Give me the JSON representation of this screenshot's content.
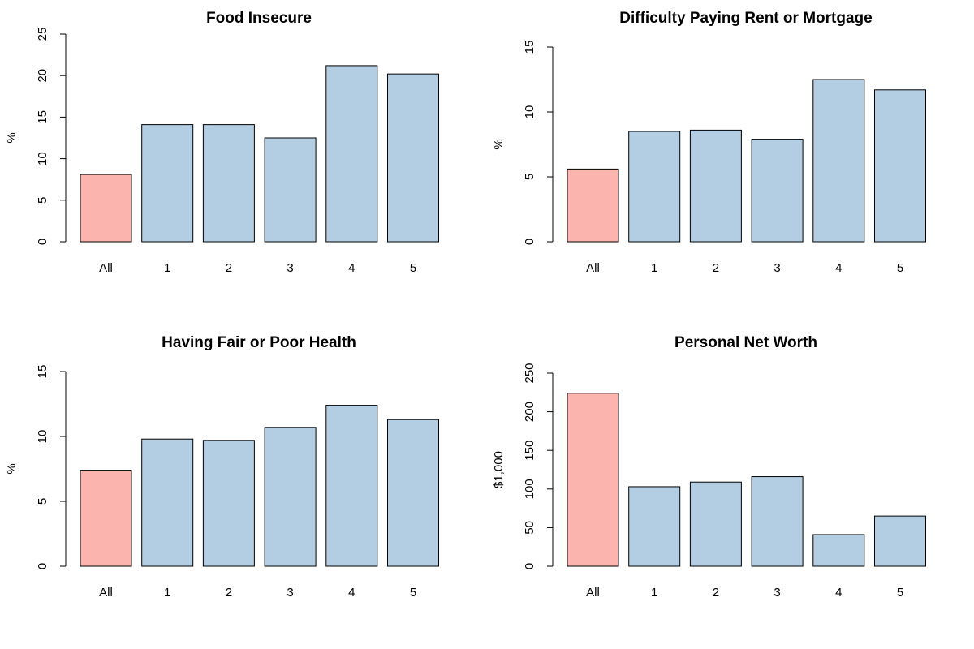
{
  "colors": {
    "highlight": "#FBB4AE",
    "default": "#B3CDE3",
    "stroke": "#000000"
  },
  "chart_data": [
    {
      "type": "bar",
      "title": "Food Insecure",
      "ylabel": "%",
      "xlabel": "",
      "categories": [
        "All",
        "1",
        "2",
        "3",
        "4",
        "5"
      ],
      "values": [
        8.1,
        14.1,
        14.1,
        12.5,
        21.2,
        20.2
      ],
      "highlight_index": 0,
      "ylim": [
        0,
        25
      ],
      "yticks": [
        "0",
        "5",
        "10",
        "15",
        "20",
        "25"
      ],
      "ytick_values": [
        0,
        5,
        10,
        15,
        20,
        25
      ],
      "grid": false
    },
    {
      "type": "bar",
      "title": "Difficulty Paying Rent or Mortgage",
      "ylabel": "%",
      "xlabel": "",
      "categories": [
        "All",
        "1",
        "2",
        "3",
        "4",
        "5"
      ],
      "values": [
        5.6,
        8.5,
        8.6,
        7.9,
        12.5,
        11.7
      ],
      "highlight_index": 0,
      "ylim": [
        0,
        15
      ],
      "yticks": [
        "0",
        "5",
        "10",
        "15"
      ],
      "ytick_values": [
        0,
        5,
        10,
        15
      ],
      "grid": false
    },
    {
      "type": "bar",
      "title": "Having Fair or Poor Health",
      "ylabel": "%",
      "xlabel": "",
      "categories": [
        "All",
        "1",
        "2",
        "3",
        "4",
        "5"
      ],
      "values": [
        7.4,
        9.8,
        9.7,
        10.7,
        12.4,
        11.3
      ],
      "highlight_index": 0,
      "ylim": [
        0,
        15
      ],
      "yticks": [
        "0",
        "5",
        "10",
        "15"
      ],
      "ytick_values": [
        0,
        5,
        10,
        15
      ],
      "grid": false
    },
    {
      "type": "bar",
      "title": "Personal Net Worth",
      "ylabel": "$1,000",
      "xlabel": "",
      "categories": [
        "All",
        "1",
        "2",
        "3",
        "4",
        "5"
      ],
      "values": [
        224,
        103,
        109,
        116,
        41,
        65
      ],
      "highlight_index": 0,
      "ylim": [
        0,
        250
      ],
      "yticks": [
        "0",
        "50",
        "100",
        "150",
        "200",
        "250"
      ],
      "ytick_values": [
        0,
        50,
        100,
        150,
        200,
        250
      ],
      "grid": false
    }
  ]
}
